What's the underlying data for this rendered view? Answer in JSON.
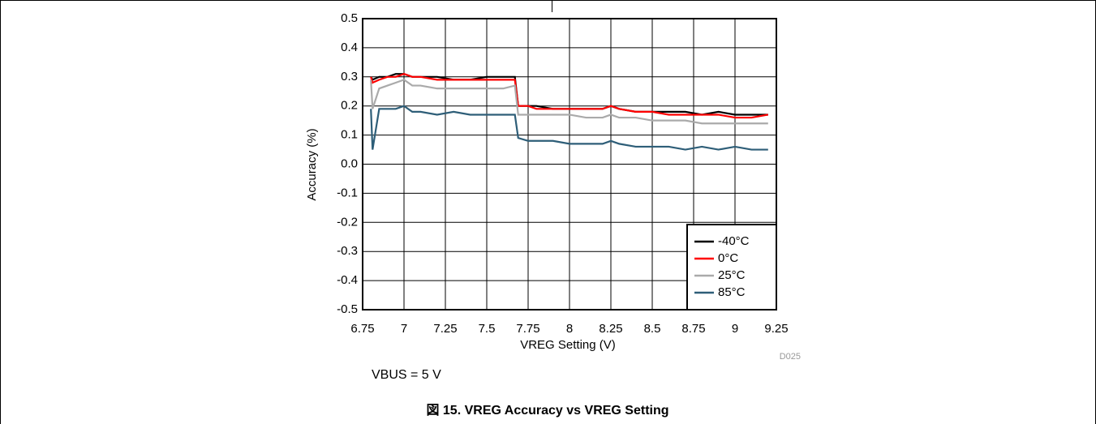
{
  "chart_data": {
    "type": "line",
    "x_label": "VREG Setting (V)",
    "y_label": "Accuracy (%)",
    "annotation": "D025",
    "note": "VBUS = 5 V",
    "caption": "図 15. VREG Accuracy vs VREG Setting",
    "x": [
      6.8,
      6.81,
      6.85,
      6.9,
      6.95,
      7.0,
      7.05,
      7.1,
      7.2,
      7.3,
      7.4,
      7.5,
      7.6,
      7.67,
      7.69,
      7.75,
      7.8,
      7.9,
      8.0,
      8.1,
      8.2,
      8.25,
      8.3,
      8.4,
      8.5,
      8.6,
      8.7,
      8.8,
      8.9,
      9.0,
      9.1,
      9.2
    ],
    "series": [
      {
        "name": "-40°C",
        "color": "#000000",
        "values": [
          0.3,
          0.29,
          0.3,
          0.3,
          0.31,
          0.31,
          0.3,
          0.3,
          0.3,
          0.29,
          0.29,
          0.3,
          0.3,
          0.3,
          0.2,
          0.2,
          0.2,
          0.19,
          0.19,
          0.19,
          0.19,
          0.2,
          0.19,
          0.18,
          0.18,
          0.18,
          0.18,
          0.17,
          0.18,
          0.17,
          0.17,
          0.17
        ]
      },
      {
        "name": "0°C",
        "color": "#ff0000",
        "values": [
          0.3,
          0.28,
          0.29,
          0.3,
          0.3,
          0.31,
          0.3,
          0.3,
          0.29,
          0.29,
          0.29,
          0.29,
          0.29,
          0.29,
          0.2,
          0.2,
          0.19,
          0.19,
          0.19,
          0.19,
          0.19,
          0.2,
          0.19,
          0.18,
          0.18,
          0.17,
          0.17,
          0.17,
          0.17,
          0.16,
          0.16,
          0.17
        ]
      },
      {
        "name": "25°C",
        "color": "#aaaaaa",
        "values": [
          0.29,
          0.19,
          0.26,
          0.27,
          0.28,
          0.29,
          0.27,
          0.27,
          0.26,
          0.26,
          0.26,
          0.26,
          0.26,
          0.27,
          0.17,
          0.17,
          0.17,
          0.17,
          0.17,
          0.16,
          0.16,
          0.17,
          0.16,
          0.16,
          0.15,
          0.15,
          0.15,
          0.14,
          0.14,
          0.14,
          0.14,
          0.14
        ]
      },
      {
        "name": "85°C",
        "color": "#2e5e78",
        "values": [
          0.19,
          0.05,
          0.19,
          0.19,
          0.19,
          0.2,
          0.18,
          0.18,
          0.17,
          0.18,
          0.17,
          0.17,
          0.17,
          0.17,
          0.09,
          0.08,
          0.08,
          0.08,
          0.07,
          0.07,
          0.07,
          0.08,
          0.07,
          0.06,
          0.06,
          0.06,
          0.05,
          0.06,
          0.05,
          0.06,
          0.05,
          0.05
        ]
      }
    ],
    "xlim": [
      6.75,
      9.25
    ],
    "xticks": [
      6.75,
      7,
      7.25,
      7.5,
      7.75,
      8,
      8.25,
      8.5,
      8.75,
      9,
      9.25
    ],
    "ylim": [
      -0.5,
      0.5
    ],
    "yticks": [
      -0.5,
      -0.4,
      -0.3,
      -0.2,
      -0.1,
      {
        "value": 0,
        "label": "0.0"
      },
      0.1,
      0.2,
      0.3,
      0.4,
      0.5
    ],
    "grid": true,
    "legend": "lower right"
  }
}
